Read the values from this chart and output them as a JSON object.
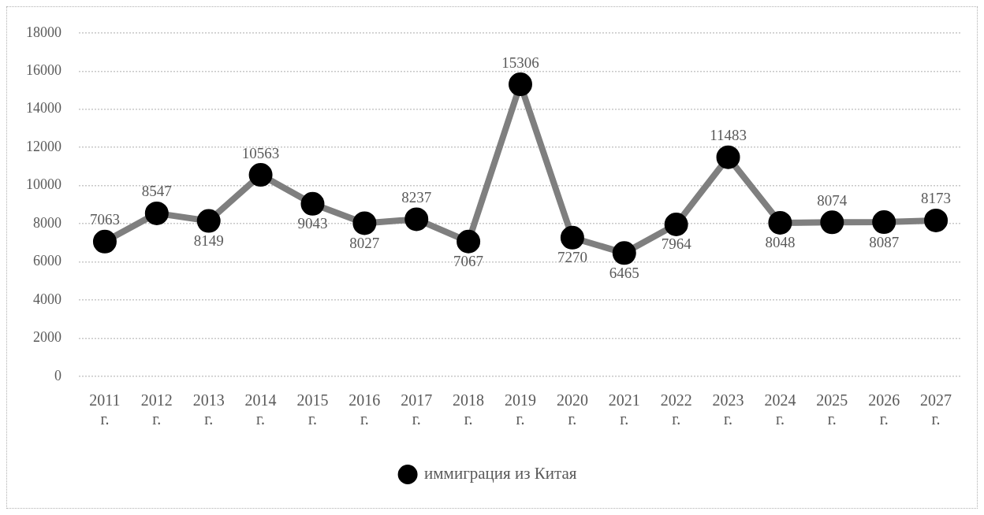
{
  "chart_data": {
    "type": "line",
    "categories": [
      "2011 г.",
      "2012 г.",
      "2013 г.",
      "2014 г.",
      "2015 г.",
      "2016 г.",
      "2017 г.",
      "2018 г.",
      "2019 г.",
      "2020 г.",
      "2021 г.",
      "2022 г.",
      "2023 г.",
      "2024 г.",
      "2025 г.",
      "2026 г.",
      "2027 г."
    ],
    "series": [
      {
        "name": "иммиграция из Китая",
        "color": "#7f7f7f",
        "colors": [
          "#000000",
          "#000000",
          "#000000",
          "#000000",
          "#000000",
          "#000000",
          "#000000",
          "#000000",
          "#000000",
          "#000000",
          "#000000",
          "#000000",
          "#000000",
          "#000000",
          "#000000",
          "#000000",
          "#000000"
        ],
        "values": [
          7063,
          8547,
          8149,
          10563,
          9043,
          8027,
          8237,
          7067,
          15306,
          7270,
          6465,
          7964,
          11483,
          8048,
          8074,
          8087,
          8173
        ]
      }
    ],
    "ylim": [
      0,
      18000
    ],
    "yticks": [
      0,
      2000,
      4000,
      6000,
      8000,
      10000,
      12000,
      14000,
      16000,
      18000
    ],
    "grid": "y",
    "legend": "bottom",
    "marker": "circle",
    "line_style": "solid",
    "data_labels": true
  }
}
